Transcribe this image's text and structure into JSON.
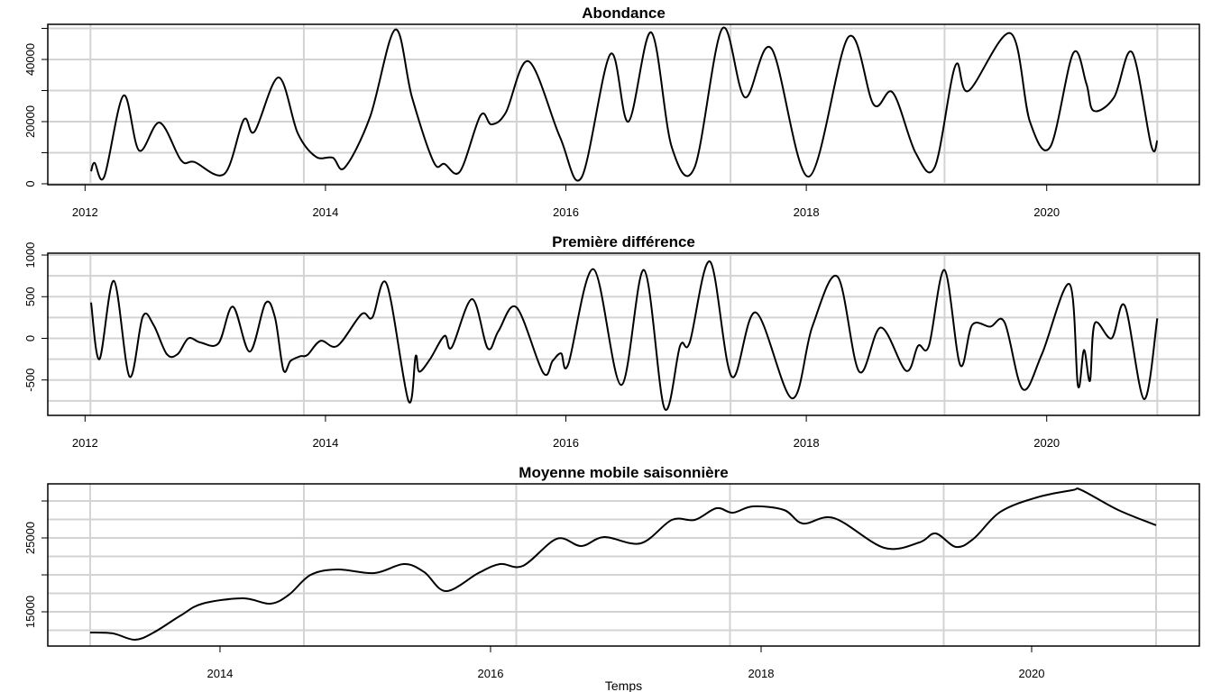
{
  "chart_data": [
    {
      "type": "line",
      "title": "Abondance",
      "color": "#000000",
      "x": [
        2012.05,
        2012.08,
        2012.16,
        2012.32,
        2012.45,
        2012.62,
        2012.8,
        2012.91,
        2013.16,
        2013.32,
        2013.41,
        2013.61,
        2013.77,
        2013.92,
        2014.06,
        2014.16,
        2014.37,
        2014.58,
        2014.72,
        2014.9,
        2014.99,
        2015.12,
        2015.29,
        2015.38,
        2015.5,
        2015.69,
        2015.95,
        2016.13,
        2016.37,
        2016.52,
        2016.71,
        2016.88,
        2017.07,
        2017.3,
        2017.49,
        2017.71,
        2018.02,
        2018.35,
        2018.56,
        2018.72,
        2018.91,
        2019.07,
        2019.24,
        2019.35,
        2019.7,
        2019.86,
        2020.03,
        2020.22,
        2020.33,
        2020.39,
        2020.56,
        2020.71,
        2020.87,
        2020.92
      ],
      "values": [
        4000,
        6700,
        2300,
        28400,
        10700,
        19700,
        7500,
        7000,
        3200,
        20600,
        16800,
        34200,
        16200,
        8700,
        8400,
        5200,
        21400,
        49600,
        27800,
        7000,
        6400,
        4000,
        22000,
        19100,
        22900,
        39400,
        15100,
        2000,
        41700,
        20000,
        48700,
        11900,
        5200,
        49900,
        27800,
        43500,
        2300,
        47200,
        25500,
        29300,
        9900,
        5500,
        38000,
        29900,
        48400,
        20000,
        11900,
        42000,
        32200,
        23500,
        27800,
        42300,
        12200,
        13900
      ],
      "xlim": [
        2011.69,
        2021.27
      ],
      "xticks": [
        2012,
        2014,
        2016,
        2018,
        2020
      ],
      "ylim": [
        -300,
        51300
      ],
      "yticks": [
        0,
        20000,
        40000
      ],
      "minor_yticks": [
        10000,
        30000,
        50000
      ],
      "xgrid": [
        2012.045,
        2013.82,
        2015.59,
        2017.37,
        2019.15,
        2020.92
      ],
      "ygrid": [
        0,
        10000,
        20000,
        30000,
        40000,
        50000
      ]
    },
    {
      "type": "line",
      "title": "Première différence",
      "color": "#000000",
      "x": [
        2012.05,
        2012.12,
        2012.24,
        2012.37,
        2012.48,
        2012.57,
        2012.68,
        2012.77,
        2012.86,
        2012.96,
        2013.11,
        2013.23,
        2013.37,
        2013.5,
        2013.58,
        2013.65,
        2013.71,
        2013.79,
        2013.85,
        2013.96,
        2014.1,
        2014.3,
        2014.39,
        2014.51,
        2014.69,
        2014.75,
        2014.78,
        2014.87,
        2014.99,
        2015.05,
        2015.22,
        2015.35,
        2015.44,
        2015.59,
        2015.81,
        2015.89,
        2015.96,
        2016.02,
        2016.23,
        2016.46,
        2016.65,
        2016.82,
        2016.95,
        2017.03,
        2017.2,
        2017.38,
        2017.58,
        2017.88,
        2018.05,
        2018.26,
        2018.44,
        2018.62,
        2018.83,
        2018.93,
        2019.02,
        2019.15,
        2019.28,
        2019.38,
        2019.53,
        2019.65,
        2019.8,
        2019.96,
        2020.19,
        2020.26,
        2020.31,
        2020.36,
        2020.4,
        2020.54,
        2020.65,
        2020.81,
        2020.92
      ],
      "values": [
        430,
        -250,
        690,
        -460,
        260,
        160,
        -190,
        -190,
        0,
        -50,
        -60,
        380,
        -160,
        420,
        250,
        -380,
        -270,
        -215,
        -200,
        -30,
        -90,
        290,
        250,
        650,
        -750,
        -215,
        -400,
        -250,
        30,
        -110,
        470,
        -120,
        90,
        370,
        -410,
        -270,
        -180,
        -310,
        830,
        -560,
        820,
        -840,
        -90,
        -50,
        920,
        -460,
        310,
        -720,
        140,
        740,
        -400,
        130,
        -390,
        -90,
        -90,
        820,
        -320,
        160,
        140,
        190,
        -610,
        -190,
        650,
        -570,
        -140,
        -510,
        180,
        0,
        390,
        -730,
        240
      ],
      "xlim": [
        2011.69,
        2021.27
      ],
      "xticks": [
        2012,
        2014,
        2016,
        2018,
        2020
      ],
      "ylim": [
        -925,
        1022
      ],
      "yticks": [
        -500,
        0,
        500,
        1000
      ],
      "xgrid": [
        2012.045,
        2013.82,
        2015.59,
        2017.37,
        2019.15,
        2020.92
      ],
      "ygrid": [
        -750,
        -500,
        -250,
        0,
        250,
        500,
        750,
        1000
      ]
    },
    {
      "type": "line",
      "title": "Moyenne mobile saisonnière",
      "xlabel": "Temps",
      "color": "#000000",
      "x": [
        2013.04,
        2013.21,
        2013.37,
        2013.51,
        2013.71,
        2013.87,
        2014.17,
        2014.37,
        2014.51,
        2014.67,
        2014.87,
        2015.14,
        2015.36,
        2015.51,
        2015.67,
        2015.91,
        2016.07,
        2016.24,
        2016.49,
        2016.67,
        2016.84,
        2017.11,
        2017.34,
        2017.51,
        2017.67,
        2017.79,
        2017.94,
        2018.17,
        2018.31,
        2018.54,
        2018.91,
        2019.17,
        2019.29,
        2019.44,
        2019.57,
        2019.77,
        2020.04,
        2020.3,
        2020.37,
        2020.64,
        2020.92
      ],
      "values": [
        12200,
        12070,
        11220,
        12200,
        14510,
        16100,
        16830,
        16100,
        17320,
        20000,
        20730,
        20240,
        21460,
        20370,
        17800,
        20240,
        21460,
        21220,
        24880,
        23900,
        25120,
        24270,
        27440,
        27440,
        29020,
        28410,
        29270,
        28780,
        26950,
        27680,
        23660,
        24390,
        25610,
        23780,
        24880,
        28540,
        30490,
        31460,
        31460,
        28780,
        26710
      ],
      "xlim": [
        2012.727,
        2021.24
      ],
      "xticks": [
        2014,
        2016,
        2018,
        2020
      ],
      "ylim": [
        10366,
        32317
      ],
      "yticks": [
        15000,
        25000
      ],
      "minor_yticks": [
        20000,
        30000
      ],
      "xgrid": [
        2013.04,
        2014.62,
        2016.19,
        2017.77,
        2019.35,
        2020.92
      ],
      "ygrid": [
        12500,
        15000,
        17500,
        20000,
        22500,
        25000,
        27500,
        30000
      ]
    }
  ]
}
